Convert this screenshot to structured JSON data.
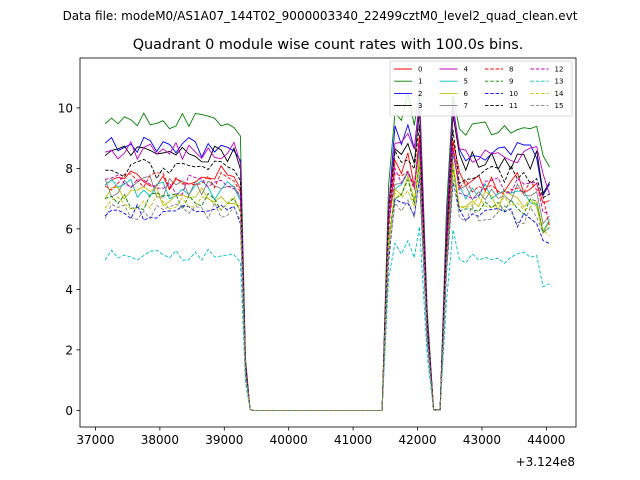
{
  "suptitle": "Data file: modeM0/AS1A07_144T02_9000003340_22499cztM0_level2_quad_clean.evt",
  "chart_data": {
    "type": "line",
    "title": "Quadrant 0 module wise count rates with 100.0s bins.",
    "xlabel": "",
    "ylabel": "",
    "x_offset_label": "+3.124e8",
    "xlim": [
      36760,
      44460
    ],
    "ylim": [
      -0.55,
      11.65
    ],
    "x_ticks": [
      37000,
      38000,
      39000,
      40000,
      41000,
      42000,
      43000,
      44000
    ],
    "x_tick_labels": [
      "37000",
      "38000",
      "39000",
      "40000",
      "41000",
      "42000",
      "43000",
      "44000"
    ],
    "y_ticks": [
      0,
      2,
      4,
      6,
      8,
      10
    ],
    "y_tick_labels": [
      "0",
      "2",
      "4",
      "6",
      "8",
      "10"
    ],
    "grid": false,
    "legend_position": "top-right",
    "legend_columns": 4,
    "series": [
      {
        "name": "0",
        "color": "#ff0000",
        "dash": "solid",
        "level": 7.7,
        "amp": 0.4
      },
      {
        "name": "1",
        "color": "#008000",
        "dash": "solid",
        "level": 9.55,
        "amp": 0.3
      },
      {
        "name": "2",
        "color": "#0000ff",
        "dash": "solid",
        "level": 8.7,
        "amp": 0.35
      },
      {
        "name": "3",
        "color": "#000000",
        "dash": "solid",
        "level": 8.4,
        "amp": 0.35
      },
      {
        "name": "4",
        "color": "#bf00bf",
        "dash": "solid",
        "level": 8.6,
        "amp": 0.3
      },
      {
        "name": "5",
        "color": "#00bfbf",
        "dash": "solid",
        "level": 7.3,
        "amp": 0.35
      },
      {
        "name": "6",
        "color": "#bfbf00",
        "dash": "solid",
        "level": 7.1,
        "amp": 0.35
      },
      {
        "name": "7",
        "color": "#808080",
        "dash": "solid",
        "level": 7.4,
        "amp": 0.35
      },
      {
        "name": "8",
        "color": "#ff0000",
        "dash": "dashed",
        "level": 7.6,
        "amp": 0.35
      },
      {
        "name": "9",
        "color": "#008000",
        "dash": "dashed",
        "level": 6.9,
        "amp": 0.3
      },
      {
        "name": "10",
        "color": "#0000ff",
        "dash": "dashed",
        "level": 6.5,
        "amp": 0.35
      },
      {
        "name": "11",
        "color": "#000000",
        "dash": "dashed",
        "level": 8.0,
        "amp": 0.35
      },
      {
        "name": "12",
        "color": "#bf00bf",
        "dash": "dashed",
        "level": 7.5,
        "amp": 0.35
      },
      {
        "name": "13",
        "color": "#00bfbf",
        "dash": "dashed",
        "level": 5.15,
        "amp": 0.2
      },
      {
        "name": "14",
        "color": "#bfbf00",
        "dash": "dashed",
        "level": 6.9,
        "amp": 0.3
      },
      {
        "name": "15",
        "color": "#808080",
        "dash": "dashed",
        "level": 6.6,
        "amp": 0.3
      }
    ],
    "segments": [
      {
        "x_start": 37150,
        "x_end": 39150,
        "state": "on"
      },
      {
        "x_start": 39250,
        "x_end": 39450,
        "state": "fall"
      },
      {
        "x_start": 39450,
        "x_end": 41450,
        "state": "off",
        "value": 0
      },
      {
        "x_start": 41450,
        "x_end": 41650,
        "state": "rise"
      },
      {
        "x_start": 41650,
        "x_end": 42050,
        "state": "on"
      },
      {
        "x_start": 42250,
        "x_end": 42350,
        "state": "off",
        "value": 0
      },
      {
        "x_start": 42550,
        "x_end": 44050,
        "state": "on"
      }
    ],
    "time_bin_seconds": 100
  }
}
